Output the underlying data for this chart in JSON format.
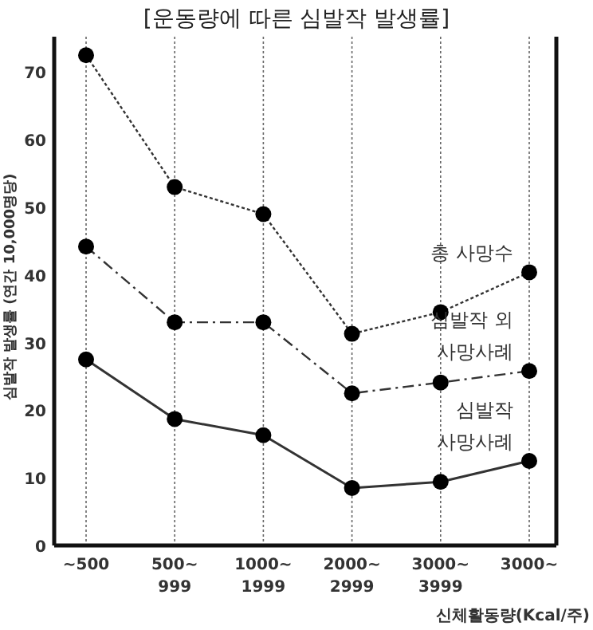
{
  "chart_data": {
    "type": "line",
    "title": "[운동량에 따른 심발작 발생률]",
    "xlabel": "신체활동량(Kcal/주)",
    "ylabel": "심발작 발생률 (연간 10,000명당)",
    "categories": [
      "~500",
      "500~ 999",
      "1000~ 1999",
      "2000~ 2999",
      "3000~ 3999",
      "3000~"
    ],
    "series": [
      {
        "name": "총 사망수",
        "color": "#333333",
        "line_style": "dotted",
        "values": [
          72.5,
          53,
          49,
          31.3,
          34.5,
          40.4
        ]
      },
      {
        "name": "심발작 외 사망사례",
        "color": "#333333",
        "line_style": "dashed",
        "values": [
          44.2,
          33,
          33,
          22.5,
          24.1,
          25.8
        ]
      },
      {
        "name": "심발작 사망사례",
        "color": "#333333",
        "line_style": "solid",
        "values": [
          27.5,
          18.7,
          16.3,
          8.5,
          9.4,
          12.5
        ]
      }
    ],
    "ylim": [
      0,
      75
    ],
    "yticks": [
      0,
      10,
      20,
      30,
      40,
      50,
      60,
      70
    ],
    "grid": "x",
    "marker": "circle",
    "legend": false
  }
}
